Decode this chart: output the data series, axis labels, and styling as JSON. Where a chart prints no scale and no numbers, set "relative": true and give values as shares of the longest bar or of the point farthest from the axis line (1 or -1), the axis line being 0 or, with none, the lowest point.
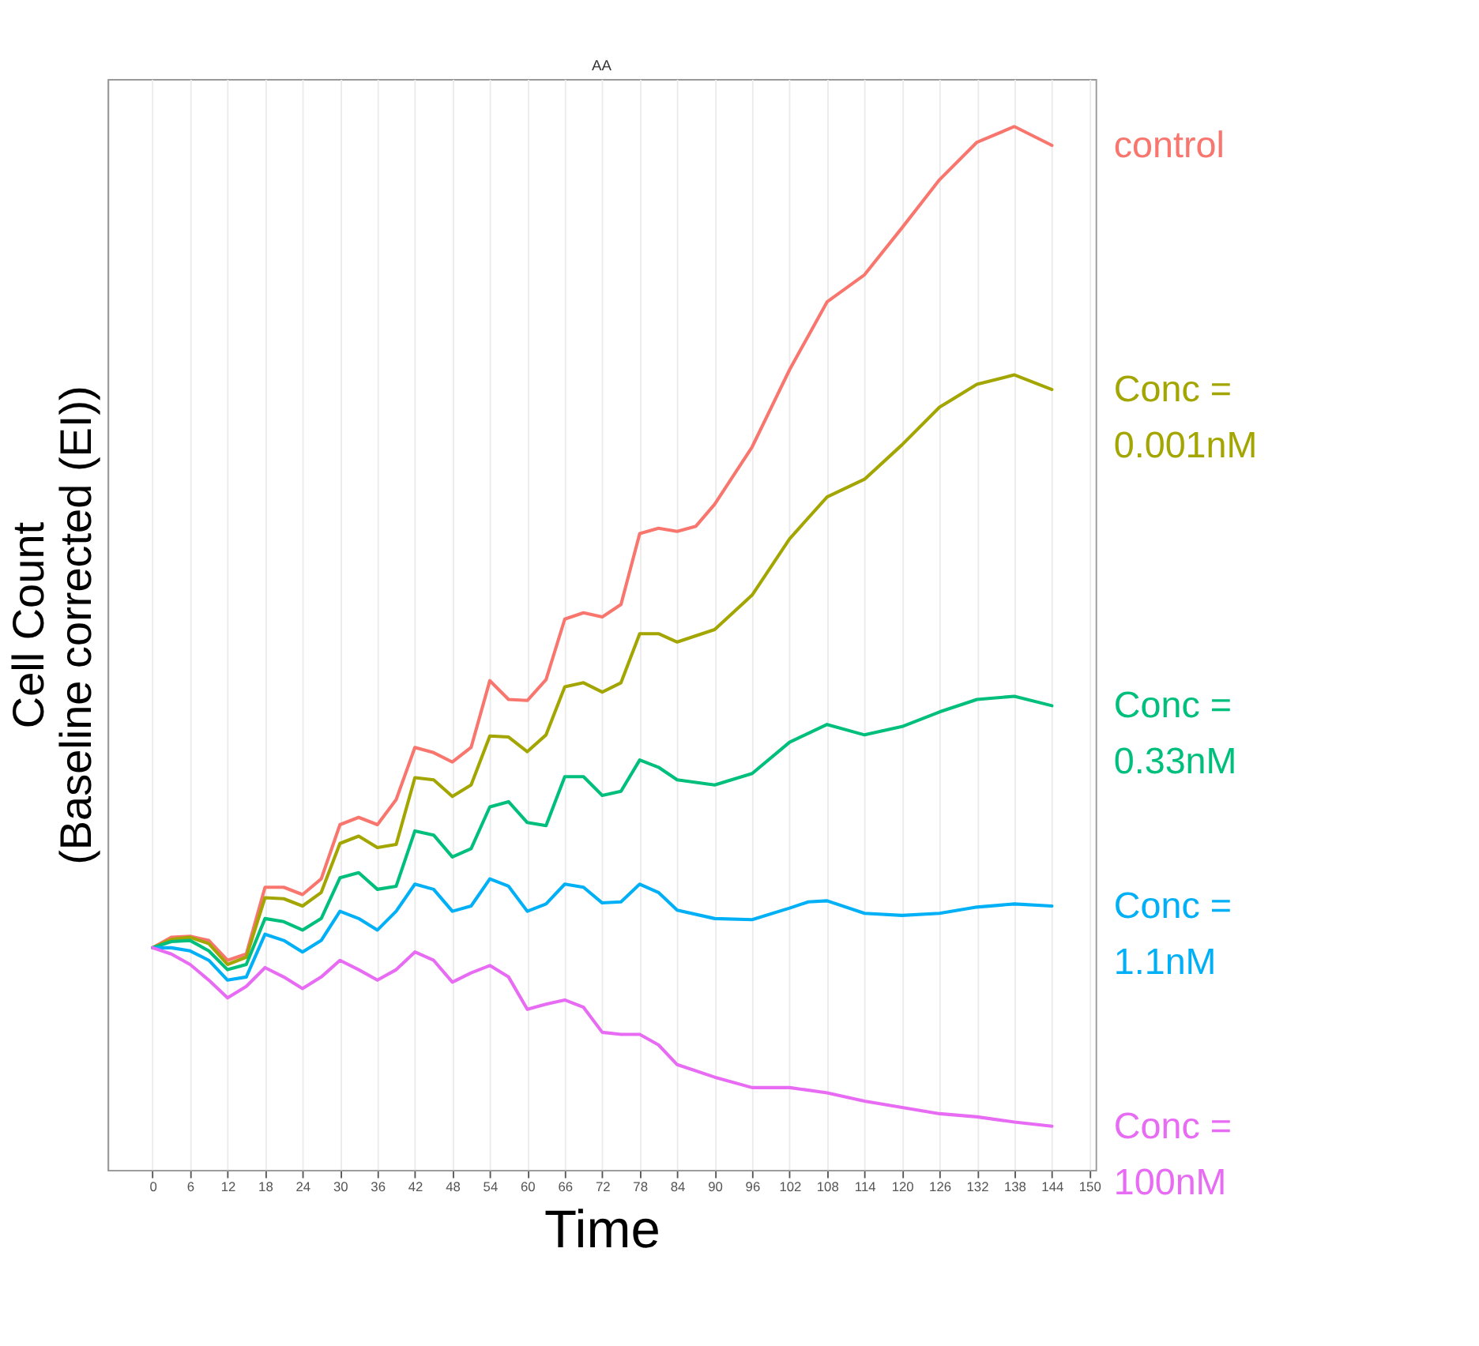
{
  "chart_data": {
    "type": "line",
    "title": "AA",
    "xlabel": "Time",
    "ylabel": "Cell Count\n(Baseline corrected (EI))",
    "relative": true,
    "xlim": [
      -7.2,
      151
    ],
    "xticks": [
      0,
      6,
      12,
      18,
      24,
      30,
      36,
      42,
      48,
      54,
      60,
      66,
      72,
      78,
      84,
      90,
      96,
      102,
      108,
      114,
      120,
      126,
      132,
      138,
      144,
      150
    ],
    "grid": "x",
    "legend": "right",
    "line_style": "solid",
    "marker": "none",
    "series": [
      {
        "name": "control",
        "color": "#f8766d",
        "x": [
          0,
          3,
          6,
          9,
          12,
          15,
          18,
          21,
          24,
          27,
          30,
          33,
          36,
          39,
          42,
          45,
          48,
          51,
          54,
          57,
          60,
          63,
          66,
          69,
          72,
          75,
          78,
          81,
          84,
          87,
          90,
          96,
          102,
          108,
          114,
          120,
          126,
          132,
          138,
          144
        ],
        "values": [
          0.213,
          0.223,
          0.224,
          0.22,
          0.201,
          0.207,
          0.271,
          0.271,
          0.264,
          0.279,
          0.331,
          0.338,
          0.331,
          0.355,
          0.405,
          0.4,
          0.391,
          0.405,
          0.469,
          0.451,
          0.45,
          0.47,
          0.528,
          0.534,
          0.53,
          0.542,
          0.61,
          0.615,
          0.612,
          0.617,
          0.638,
          0.693,
          0.767,
          0.832,
          0.858,
          0.903,
          0.949,
          0.985,
          1.0,
          0.982
        ]
      },
      {
        "name": "Conc = 0.001nM",
        "color": "#a3a500",
        "x": [
          0,
          3,
          6,
          9,
          12,
          15,
          18,
          21,
          24,
          27,
          30,
          33,
          36,
          39,
          42,
          45,
          48,
          51,
          54,
          57,
          60,
          63,
          66,
          69,
          72,
          75,
          78,
          81,
          84,
          90,
          96,
          102,
          108,
          114,
          120,
          126,
          132,
          138,
          144
        ],
        "values": [
          0.213,
          0.221,
          0.223,
          0.217,
          0.197,
          0.204,
          0.261,
          0.26,
          0.253,
          0.266,
          0.313,
          0.32,
          0.309,
          0.312,
          0.376,
          0.374,
          0.358,
          0.369,
          0.416,
          0.415,
          0.401,
          0.417,
          0.463,
          0.467,
          0.458,
          0.467,
          0.514,
          0.514,
          0.506,
          0.518,
          0.551,
          0.605,
          0.645,
          0.662,
          0.695,
          0.731,
          0.753,
          0.762,
          0.748
        ]
      },
      {
        "name": "Conc = 0.33nM",
        "color": "#00bf7d",
        "x": [
          0,
          3,
          6,
          9,
          12,
          15,
          18,
          21,
          24,
          27,
          30,
          33,
          36,
          39,
          42,
          45,
          48,
          51,
          54,
          57,
          60,
          63,
          66,
          69,
          72,
          75,
          78,
          81,
          84,
          90,
          96,
          102,
          108,
          114,
          120,
          126,
          132,
          138,
          144
        ],
        "values": [
          0.213,
          0.219,
          0.22,
          0.21,
          0.192,
          0.197,
          0.241,
          0.238,
          0.23,
          0.241,
          0.28,
          0.285,
          0.269,
          0.272,
          0.325,
          0.321,
          0.3,
          0.308,
          0.348,
          0.353,
          0.333,
          0.33,
          0.377,
          0.377,
          0.359,
          0.363,
          0.393,
          0.386,
          0.374,
          0.369,
          0.38,
          0.41,
          0.427,
          0.417,
          0.425,
          0.439,
          0.451,
          0.454,
          0.445
        ]
      },
      {
        "name": "Conc = 1.1nM",
        "color": "#00b0f6",
        "x": [
          0,
          3,
          6,
          9,
          12,
          15,
          18,
          21,
          24,
          27,
          30,
          33,
          36,
          39,
          42,
          45,
          48,
          51,
          54,
          57,
          60,
          63,
          66,
          69,
          72,
          75,
          78,
          81,
          84,
          90,
          96,
          102,
          105,
          108,
          114,
          120,
          126,
          132,
          138,
          144
        ],
        "values": [
          0.213,
          0.213,
          0.21,
          0.201,
          0.182,
          0.185,
          0.226,
          0.22,
          0.209,
          0.22,
          0.248,
          0.241,
          0.23,
          0.248,
          0.274,
          0.269,
          0.248,
          0.253,
          0.279,
          0.272,
          0.248,
          0.255,
          0.274,
          0.271,
          0.256,
          0.257,
          0.274,
          0.266,
          0.249,
          0.241,
          0.24,
          0.251,
          0.257,
          0.258,
          0.246,
          0.244,
          0.246,
          0.252,
          0.255,
          0.253
        ]
      },
      {
        "name": "Conc = 100nM",
        "color": "#e76bf3",
        "x": [
          0,
          3,
          6,
          9,
          12,
          15,
          18,
          21,
          24,
          27,
          30,
          33,
          36,
          39,
          42,
          45,
          48,
          51,
          54,
          57,
          60,
          63,
          66,
          69,
          72,
          75,
          78,
          81,
          84,
          90,
          96,
          102,
          108,
          114,
          120,
          126,
          132,
          138,
          144
        ],
        "values": [
          0.213,
          0.207,
          0.197,
          0.182,
          0.165,
          0.176,
          0.194,
          0.185,
          0.174,
          0.185,
          0.201,
          0.192,
          0.182,
          0.192,
          0.209,
          0.201,
          0.18,
          0.189,
          0.196,
          0.185,
          0.154,
          0.159,
          0.163,
          0.156,
          0.132,
          0.13,
          0.13,
          0.12,
          0.101,
          0.089,
          0.079,
          0.079,
          0.074,
          0.066,
          0.06,
          0.054,
          0.051,
          0.046,
          0.042
        ]
      }
    ]
  }
}
